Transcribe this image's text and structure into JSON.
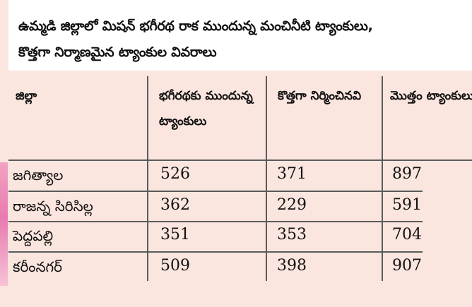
{
  "title": {
    "line1": "ఉమ్మడి జిల్లాలో మిషన్ భగీరథ రాక ముందున్న మంచినీటి ట్యాంకులు,",
    "line2": "కొత్తగా నిర్మాణమైన ట్యాంకుల వివరాలు"
  },
  "table": {
    "headers": [
      "జిల్లా",
      "భగీరథకు ముందున్న ట్యాంకులు",
      "కొత్తగా నిర్మించినవి",
      "మొత్తం ట్యాంకులు"
    ],
    "rows": [
      {
        "district": "జగిత్యాల",
        "before": "526",
        "new": "371",
        "total": "897"
      },
      {
        "district": "రాజన్న సిరిసిల్ల",
        "before": "362",
        "new": "229",
        "total": "591"
      },
      {
        "district": "పెద్దపల్లి",
        "before": "351",
        "new": "353",
        "total": "704"
      },
      {
        "district": "కరీంనగర్",
        "before": "509",
        "new": "398",
        "total": "907"
      }
    ]
  },
  "colors": {
    "background": "#fbe6df",
    "header_background": "#ffffff",
    "rule": "#5a5a5a",
    "edge_accent": "#e87ab0"
  }
}
